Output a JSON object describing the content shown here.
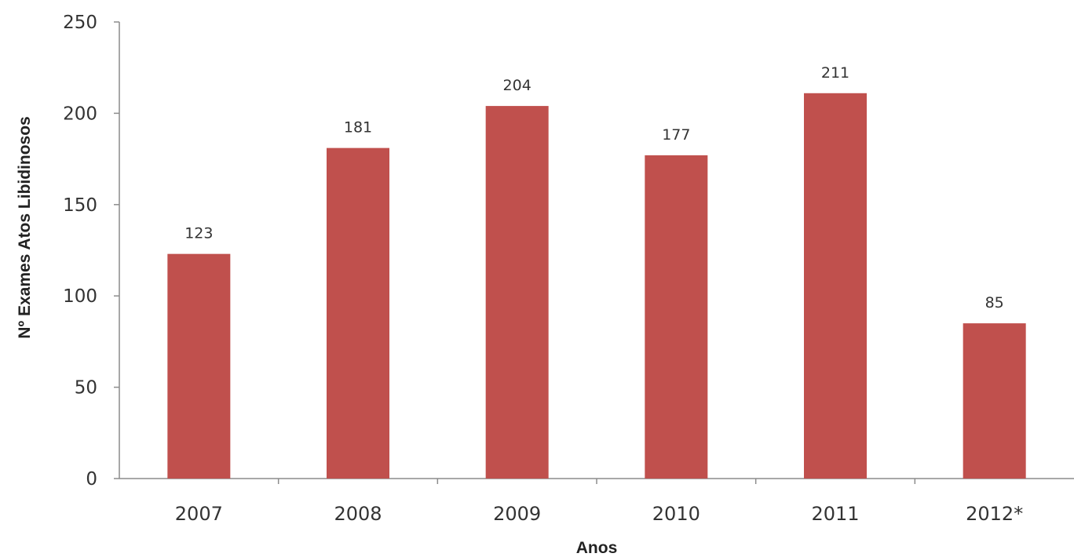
{
  "chart_data": {
    "type": "bar",
    "title": "",
    "xlabel": "Anos",
    "ylabel": "Nº Exames Atos Libidinosos",
    "categories": [
      "2007",
      "2008",
      "2009",
      "2010",
      "2011",
      "2012*"
    ],
    "values": [
      123,
      181,
      204,
      177,
      211,
      85
    ],
    "data_labels": [
      "123",
      "181",
      "204",
      "177",
      "211",
      "85"
    ],
    "ylim": [
      0,
      250
    ],
    "yticks": [
      0,
      50,
      100,
      150,
      200,
      250
    ],
    "grid": false,
    "legend": "none",
    "bar_color": "#c0504d"
  }
}
